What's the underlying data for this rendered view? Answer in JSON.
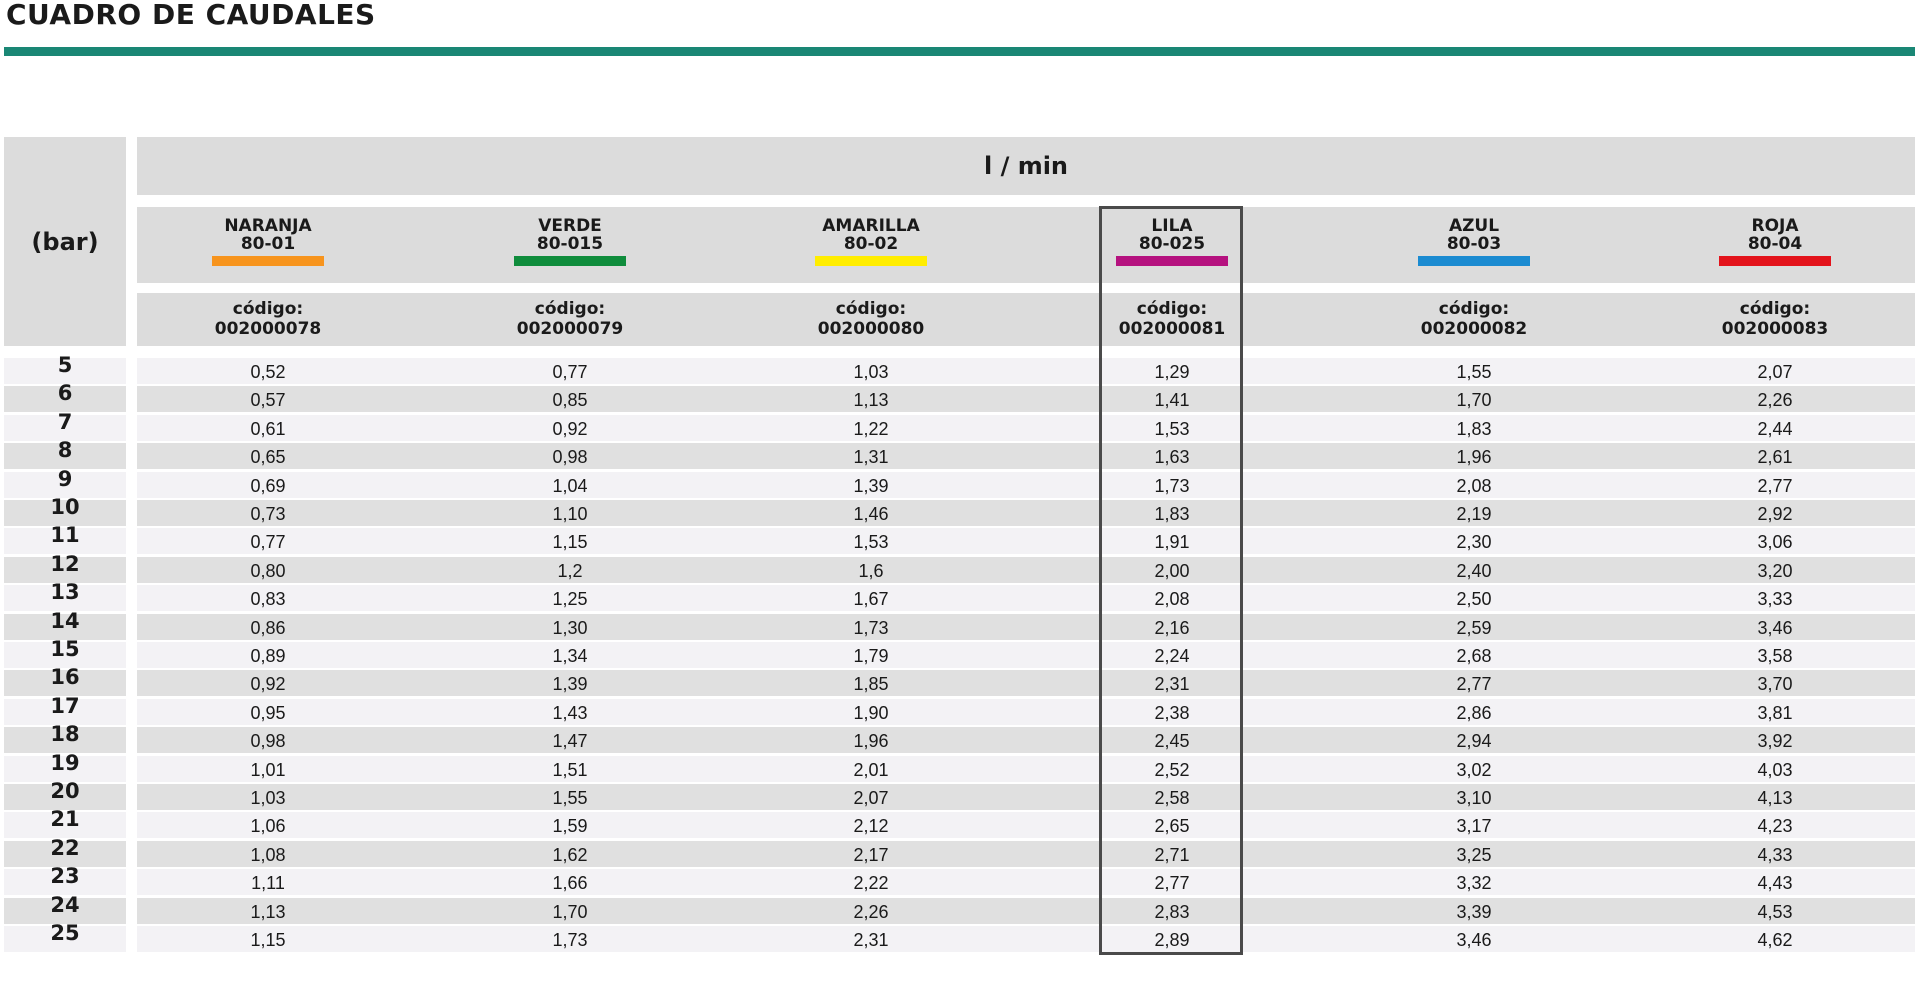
{
  "title": "CUADRO DE CAUDALES",
  "colors": {
    "rule": "#1a8775",
    "header_bg": "#dcdcdc",
    "row_alt": "#e0e0e0",
    "row_light": "#f3f2f5",
    "highlight_border": "#4a4a4a"
  },
  "table": {
    "pressure_header": "(bar)",
    "flow_header": "l / min",
    "code_label": "código:",
    "nozzles": [
      {
        "color_name": "NARANJA",
        "model": "80-01",
        "color": "#f7941d",
        "code": "002000078"
      },
      {
        "color_name": "VERDE",
        "model": "80-015",
        "color": "#0f8c3c",
        "code": "002000079"
      },
      {
        "color_name": "AMARILLA",
        "model": "80-02",
        "color": "#ffed00",
        "code": "002000080"
      },
      {
        "color_name": "LILA",
        "model": "80-025",
        "color": "#b5127f",
        "code": "002000081"
      },
      {
        "color_name": "AZUL",
        "model": "80-03",
        "color": "#1b8bd1",
        "code": "002000082"
      },
      {
        "color_name": "ROJA",
        "model": "80-04",
        "color": "#e3131b",
        "code": "002000083"
      }
    ],
    "highlighted_nozzle": "LILA",
    "rows": [
      {
        "bar": "5",
        "values": [
          "0,52",
          "0,77",
          "1,03",
          "1,29",
          "1,55",
          "2,07"
        ]
      },
      {
        "bar": "6",
        "values": [
          "0,57",
          "0,85",
          "1,13",
          "1,41",
          "1,70",
          "2,26"
        ]
      },
      {
        "bar": "7",
        "values": [
          "0,61",
          "0,92",
          "1,22",
          "1,53",
          "1,83",
          "2,44"
        ]
      },
      {
        "bar": "8",
        "values": [
          "0,65",
          "0,98",
          "1,31",
          "1,63",
          "1,96",
          "2,61"
        ]
      },
      {
        "bar": "9",
        "values": [
          "0,69",
          "1,04",
          "1,39",
          "1,73",
          "2,08",
          "2,77"
        ]
      },
      {
        "bar": "10",
        "values": [
          "0,73",
          "1,10",
          "1,46",
          "1,83",
          "2,19",
          "2,92"
        ]
      },
      {
        "bar": "11",
        "values": [
          "0,77",
          "1,15",
          "1,53",
          "1,91",
          "2,30",
          "3,06"
        ]
      },
      {
        "bar": "12",
        "values": [
          "0,80",
          "1,2",
          "1,6",
          "2,00",
          "2,40",
          "3,20"
        ]
      },
      {
        "bar": "13",
        "values": [
          "0,83",
          "1,25",
          "1,67",
          "2,08",
          "2,50",
          "3,33"
        ]
      },
      {
        "bar": "14",
        "values": [
          "0,86",
          "1,30",
          "1,73",
          "2,16",
          "2,59",
          "3,46"
        ]
      },
      {
        "bar": "15",
        "values": [
          "0,89",
          "1,34",
          "1,79",
          "2,24",
          "2,68",
          "3,58"
        ]
      },
      {
        "bar": "16",
        "values": [
          "0,92",
          "1,39",
          "1,85",
          "2,31",
          "2,77",
          "3,70"
        ]
      },
      {
        "bar": "17",
        "values": [
          "0,95",
          "1,43",
          "1,90",
          "2,38",
          "2,86",
          "3,81"
        ]
      },
      {
        "bar": "18",
        "values": [
          "0,98",
          "1,47",
          "1,96",
          "2,45",
          "2,94",
          "3,92"
        ]
      },
      {
        "bar": "19",
        "values": [
          "1,01",
          "1,51",
          "2,01",
          "2,52",
          "3,02",
          "4,03"
        ]
      },
      {
        "bar": "20",
        "values": [
          "1,03",
          "1,55",
          "2,07",
          "2,58",
          "3,10",
          "4,13"
        ]
      },
      {
        "bar": "21",
        "values": [
          "1,06",
          "1,59",
          "2,12",
          "2,65",
          "3,17",
          "4,23"
        ]
      },
      {
        "bar": "22",
        "values": [
          "1,08",
          "1,62",
          "2,17",
          "2,71",
          "3,25",
          "4,33"
        ]
      },
      {
        "bar": "23",
        "values": [
          "1,11",
          "1,66",
          "2,22",
          "2,77",
          "3,32",
          "4,43"
        ]
      },
      {
        "bar": "24",
        "values": [
          "1,13",
          "1,70",
          "2,26",
          "2,83",
          "3,39",
          "4,53"
        ]
      },
      {
        "bar": "25",
        "values": [
          "1,15",
          "1,73",
          "2,31",
          "2,89",
          "3,46",
          "4,62"
        ]
      }
    ]
  }
}
